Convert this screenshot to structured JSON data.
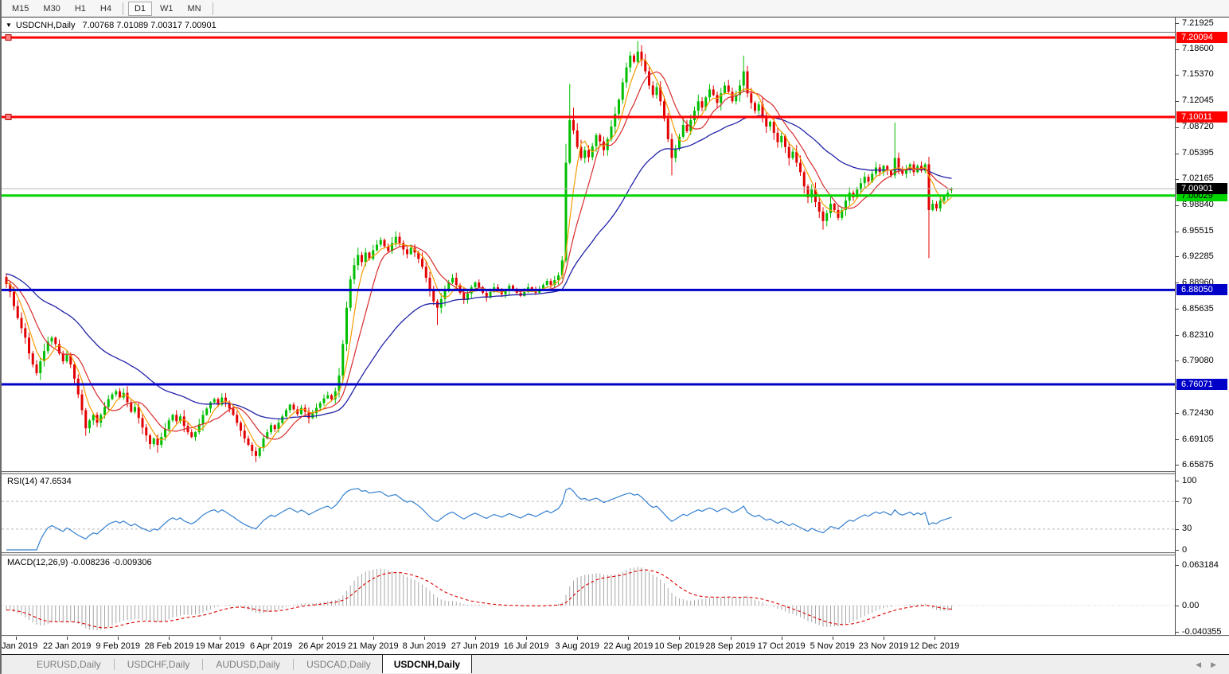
{
  "toolbar": {
    "timeframes": [
      "M15",
      "M30",
      "H1",
      "H4",
      "D1",
      "W1",
      "MN"
    ],
    "active": "D1"
  },
  "icons": {
    "dropdown": "▼",
    "scroll_left": "◀",
    "scroll_right": "▶"
  },
  "chart_header": {
    "symbol": "USDCNH,Daily",
    "ohlc": "7.00768 7.01089 7.00317 7.00901"
  },
  "price_axis": {
    "ticks": [
      "7.21925",
      "7.18600",
      "7.15370",
      "7.12045",
      "7.08720",
      "7.05395",
      "7.02165",
      "6.98840",
      "6.95515",
      "6.92285",
      "6.88960",
      "6.85635",
      "6.82310",
      "6.79080",
      "6.75755",
      "6.72430",
      "6.69105",
      "6.65875"
    ]
  },
  "rsi_panel": {
    "label": "RSI(14) 47.6534",
    "ticks": [
      "100",
      "70",
      "30",
      "0"
    ],
    "level_lines": [
      70,
      30
    ]
  },
  "macd_panel": {
    "label": "MACD(12,26,9) -0.008236 -0.009306",
    "ticks": [
      "0.063184",
      "0.00",
      "-0.040355"
    ],
    "max": 0.063184,
    "min": -0.040355
  },
  "date_axis": {
    "labels": [
      "3 Jan 2019",
      "22 Jan 2019",
      "9 Feb 2019",
      "28 Feb 2019",
      "19 Mar 2019",
      "6 Apr 2019",
      "26 Apr 2019",
      "21 May 2019",
      "8 Jun 2019",
      "27 Jun 2019",
      "16 Jul 2019",
      "3 Aug 2019",
      "22 Aug 2019",
      "10 Sep 2019",
      "28 Sep 2019",
      "17 Oct 2019",
      "5 Nov 2019",
      "23 Nov 2019",
      "12 Dec 2019"
    ]
  },
  "tabs": {
    "items": [
      "EURUSD,Daily",
      "USDCHF,Daily",
      "AUDUSD,Daily",
      "USDCAD,Daily",
      "USDCNH,Daily"
    ],
    "active": "USDCNH,Daily"
  },
  "colors": {
    "up_candle": "#00BE00",
    "down_candle": "#E30000",
    "ma_fast": "#F59B00",
    "ma_mid": "#D92B2B",
    "ma_slow": "#2121A8",
    "resistance": "#FF0000",
    "support_blue": "#0000C8",
    "support_green": "#00D500",
    "bid_line": "#B9B9B9",
    "bid_badge": "#000000",
    "rsi_line": "#3580D0",
    "macd_histogram": "#A6A6A6",
    "macd_signal": "#DD0000"
  },
  "chart_data": {
    "type": "candlestick",
    "symbol": "USDCNH",
    "timeframe": "Daily",
    "last_candle": {
      "open": 7.00768,
      "high": 7.01089,
      "low": 7.00317,
      "close": 7.00901
    },
    "bid": {
      "label": "7.00901",
      "value": 7.00901
    },
    "levels": [
      {
        "label": "7.20094",
        "value": 7.20094,
        "color_key": "resistance",
        "text_color": "#FFFFFF",
        "handle": true
      },
      {
        "label": "7.10011",
        "value": 7.10011,
        "color_key": "resistance",
        "text_color": "#FFFFFF",
        "handle": true
      },
      {
        "label": "7.00029",
        "value": 7.00029,
        "color_key": "support_green",
        "text_color": "#000000",
        "handle": false
      },
      {
        "label": "6.88050",
        "value": 6.8805,
        "color_key": "support_blue",
        "text_color": "#FFFFFF",
        "handle": false
      },
      {
        "label": "6.76071",
        "value": 6.76071,
        "color_key": "support_blue",
        "text_color": "#FFFFFF",
        "handle": false
      }
    ],
    "moving_averages": [
      {
        "name": "fast",
        "period": 5,
        "color_key": "ma_fast"
      },
      {
        "name": "mid",
        "period": 10,
        "color_key": "ma_mid"
      },
      {
        "name": "slow",
        "period": 20,
        "smoothed": true,
        "color_key": "ma_slow"
      }
    ],
    "indicators": [
      {
        "name": "RSI",
        "period": 14,
        "value": 47.6534
      },
      {
        "name": "MACD",
        "fast": 12,
        "slow": 26,
        "signal": 9,
        "value": -0.008236,
        "signal_value": -0.009306
      }
    ],
    "closes": [
      6.888,
      6.878,
      6.86,
      6.845,
      6.832,
      6.82,
      6.8,
      6.786,
      6.775,
      6.79,
      6.803,
      6.815,
      6.82,
      6.812,
      6.8,
      6.79,
      6.798,
      6.786,
      6.768,
      6.748,
      6.728,
      6.705,
      6.715,
      6.722,
      6.712,
      6.722,
      6.732,
      6.742,
      6.748,
      6.752,
      6.744,
      6.75,
      6.738,
      6.726,
      6.732,
      6.718,
      6.706,
      6.696,
      6.685,
      6.692,
      6.684,
      6.694,
      6.704,
      6.715,
      6.722,
      6.714,
      6.72,
      6.708,
      6.7,
      6.694,
      6.7,
      6.71,
      6.722,
      6.73,
      6.738,
      6.742,
      6.735,
      6.744,
      6.738,
      6.73,
      6.722,
      6.712,
      6.702,
      6.692,
      6.684,
      6.676,
      6.67,
      6.68,
      6.692,
      6.7,
      6.709,
      6.704,
      6.712,
      6.72,
      6.728,
      6.735,
      6.729,
      6.723,
      6.731,
      6.726,
      6.718,
      6.724,
      6.731,
      6.737,
      6.743,
      6.747,
      6.742,
      6.752,
      6.772,
      6.812,
      6.858,
      6.894,
      6.912,
      6.925,
      6.916,
      6.928,
      6.92,
      6.931,
      6.938,
      6.944,
      6.936,
      6.93,
      6.94,
      6.948,
      6.94,
      6.932,
      6.926,
      6.934,
      6.928,
      6.92,
      6.91,
      6.896,
      6.88,
      6.866,
      6.858,
      6.869,
      6.881,
      6.89,
      6.896,
      6.887,
      6.877,
      6.868,
      6.876,
      6.884,
      6.89,
      6.884,
      6.877,
      6.871,
      6.878,
      6.884,
      6.88,
      6.875,
      6.88,
      6.886,
      6.882,
      6.877,
      6.873,
      6.878,
      6.884,
      6.881,
      6.877,
      6.882,
      6.887,
      6.892,
      6.887,
      6.893,
      6.899,
      6.918,
      7.042,
      7.096,
      7.083,
      7.062,
      7.048,
      7.058,
      7.049,
      7.063,
      7.077,
      7.069,
      7.058,
      7.072,
      7.088,
      7.104,
      7.122,
      7.144,
      7.163,
      7.178,
      7.17,
      7.183,
      7.172,
      7.158,
      7.14,
      7.128,
      7.138,
      7.12,
      7.098,
      7.072,
      7.048,
      7.06,
      7.075,
      7.09,
      7.082,
      7.096,
      7.108,
      7.12,
      7.112,
      7.125,
      7.135,
      7.128,
      7.118,
      7.13,
      7.14,
      7.132,
      7.12,
      7.128,
      7.14,
      7.158,
      7.13,
      7.118,
      7.108,
      7.116,
      7.102,
      7.088,
      7.094,
      7.08,
      7.068,
      7.076,
      7.062,
      7.048,
      7.056,
      7.042,
      7.03,
      7.012,
      6.998,
      7.008,
      6.992,
      6.98,
      6.968,
      6.978,
      6.99,
      6.982,
      6.972,
      6.982,
      6.994,
      7.004,
      6.998,
      7.008,
      7.016,
      7.024,
      7.018,
      7.028,
      7.036,
      7.03,
      7.038,
      7.032,
      7.026,
      7.048,
      7.034,
      7.028,
      7.034,
      7.04,
      7.03,
      7.038,
      7.032,
      7.04,
      6.982,
      6.99,
      6.984,
      6.994,
      6.999,
      7.004,
      7.009
    ],
    "overrides": {
      "40": {
        "low": 6.674
      },
      "66": {
        "low": 6.662
      },
      "88": {
        "low": 6.744
      },
      "114": {
        "low": 6.836
      },
      "148": {
        "high": 7.066,
        "low": 6.915
      },
      "149": {
        "high": 7.142
      },
      "150": {
        "high": 7.112
      },
      "167": {
        "high": 7.1965
      },
      "176": {
        "low": 7.026
      },
      "195": {
        "high": 7.178
      },
      "216": {
        "low": 6.957
      },
      "235": {
        "high": 7.093
      },
      "244": {
        "low": 6.921
      },
      "250": {
        "open": 7.00768,
        "high": 7.01089,
        "low": 7.00317,
        "close": 7.00901
      }
    }
  }
}
